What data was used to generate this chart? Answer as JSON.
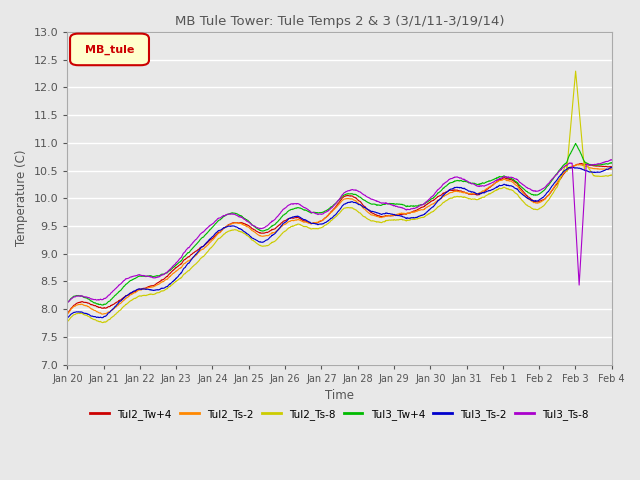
{
  "title": "MB Tule Tower: Tule Temps 2 & 3 (3/1/11-3/19/14)",
  "xlabel": "Time",
  "ylabel": "Temperature (C)",
  "ylim": [
    7.0,
    13.0
  ],
  "yticks": [
    7.0,
    7.5,
    8.0,
    8.5,
    9.0,
    9.5,
    10.0,
    10.5,
    11.0,
    11.5,
    12.0,
    12.5,
    13.0
  ],
  "xtick_labels": [
    "Jan 20",
    "Jan 21",
    "Jan 22",
    "Jan 23",
    "Jan 24",
    "Jan 25",
    "Jan 26",
    "Jan 27",
    "Jan 28",
    "Jan 29",
    "Jan 30",
    "Jan 31",
    "Feb 1",
    "Feb 2",
    "Feb 3",
    "Feb 4"
  ],
  "legend_label": "MB_tule",
  "series_labels": [
    "Tul2_Tw+4",
    "Tul2_Ts-2",
    "Tul2_Ts-8",
    "Tul3_Tw+4",
    "Tul3_Ts-2",
    "Tul3_Ts-8"
  ],
  "series_colors": [
    "#cc0000",
    "#ff8800",
    "#cccc00",
    "#00bb00",
    "#0000cc",
    "#aa00cc"
  ],
  "background_color": "#e8e8e8",
  "plot_bg_color": "#e8e8e8",
  "grid_color": "#ffffff",
  "title_color": "#555555",
  "tick_label_color": "#555555",
  "mb_tule_bg": "#ffffcc",
  "mb_tule_fg": "#cc0000",
  "mb_tule_border": "#cc0000"
}
